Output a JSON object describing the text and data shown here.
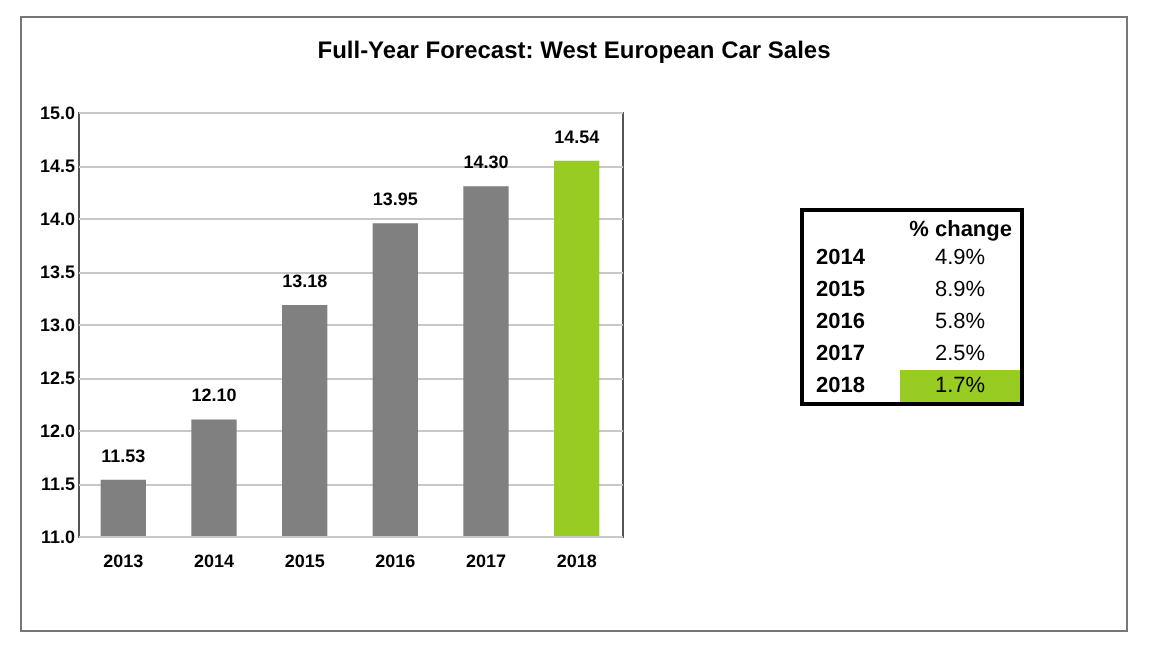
{
  "chart_data": {
    "type": "bar",
    "title": "Full-Year Forecast: West European Car Sales",
    "categories": [
      "2013",
      "2014",
      "2015",
      "2016",
      "2017",
      "2018"
    ],
    "values": [
      11.53,
      12.1,
      13.18,
      13.95,
      14.3,
      14.54
    ],
    "value_labels": [
      "11.53",
      "12.10",
      "13.18",
      "13.95",
      "14.30",
      "14.54"
    ],
    "colors": [
      "#808080",
      "#808080",
      "#808080",
      "#808080",
      "#808080",
      "#99cc22"
    ],
    "ylim": [
      11,
      15
    ],
    "yticks": [
      {
        "value": 11,
        "label": "11.0"
      },
      {
        "value": 11.5,
        "label": "11.5"
      },
      {
        "value": 12,
        "label": "12.0"
      },
      {
        "value": 12.5,
        "label": "12.5"
      },
      {
        "value": 13,
        "label": "13.0"
      },
      {
        "value": 13.5,
        "label": "13.5"
      },
      {
        "value": 14,
        "label": "14.0"
      },
      {
        "value": 14.5,
        "label": "14.5"
      },
      {
        "value": 15,
        "label": "15.0"
      }
    ],
    "grid": "y",
    "annotations": [
      "% change",
      "2014",
      "4.9%",
      "2015",
      "8.9%",
      "2016",
      "5.8%",
      "2017",
      "2.5%",
      "2018",
      "1.7%"
    ]
  }
}
